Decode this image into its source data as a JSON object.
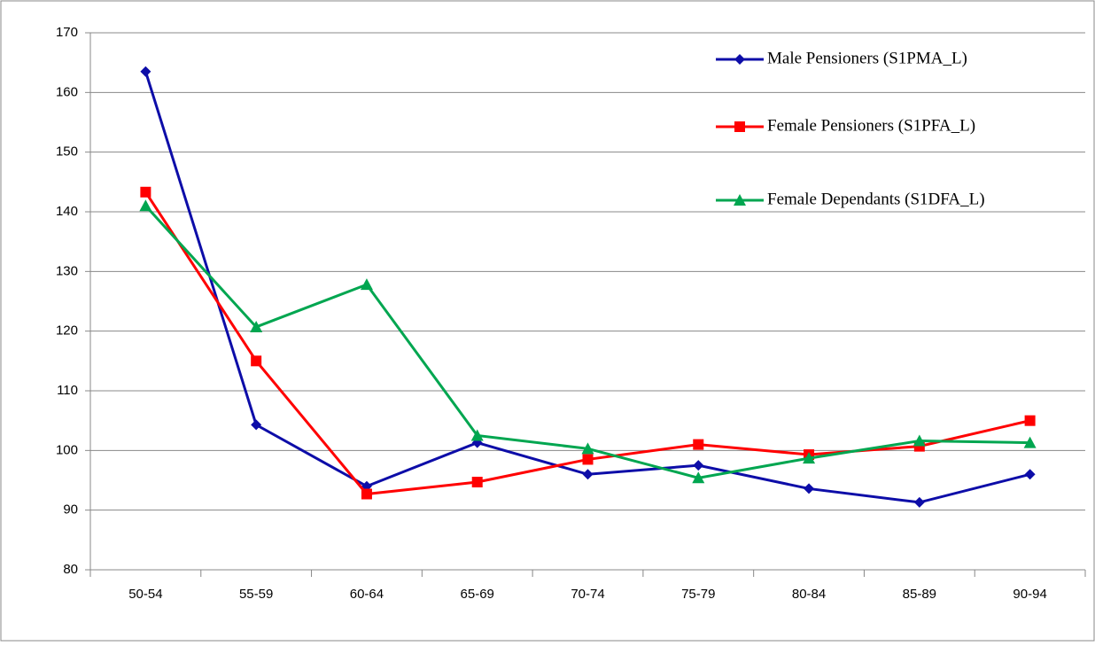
{
  "chart_data": {
    "type": "line",
    "categories": [
      "50-54",
      "55-59",
      "60-64",
      "65-69",
      "70-74",
      "75-79",
      "80-84",
      "85-89",
      "90-94"
    ],
    "series": [
      {
        "name": "Male Pensioners (S1PMA_L)",
        "color": "#0d0da8",
        "marker": "diamond",
        "values": [
          163.5,
          104.3,
          94,
          101.3,
          96,
          97.5,
          93.6,
          91.3,
          96
        ]
      },
      {
        "name": "Female Pensioners (S1PFA_L)",
        "color": "#ff0000",
        "marker": "square",
        "values": [
          143.3,
          115,
          92.7,
          94.7,
          98.5,
          101,
          99.3,
          100.7,
          105
        ]
      },
      {
        "name": "Female Dependants (S1DFA_L)",
        "color": "#00a650",
        "marker": "triangle",
        "values": [
          141,
          120.7,
          127.8,
          102.5,
          100.3,
          95.4,
          98.7,
          101.6,
          101.3
        ]
      }
    ],
    "ylim": [
      80,
      170
    ],
    "yticks": [
      80,
      90,
      100,
      110,
      120,
      130,
      140,
      150,
      160,
      170
    ],
    "grid": true,
    "legend": "top-right"
  }
}
